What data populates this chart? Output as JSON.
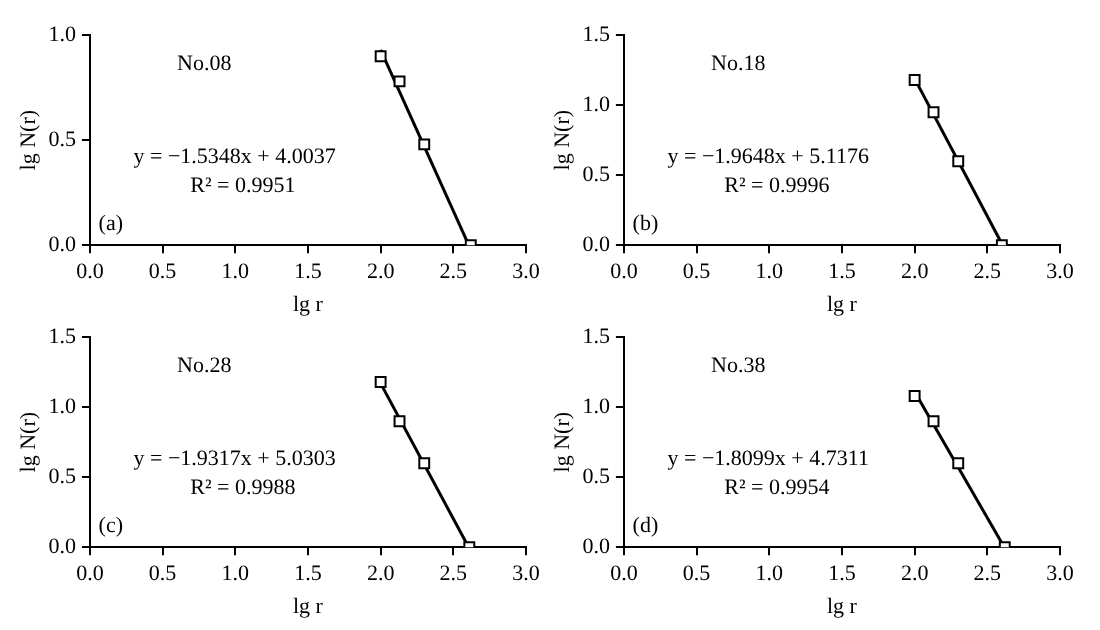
{
  "chart_data": [
    {
      "type": "scatter",
      "xlabel": "lg r",
      "ylabel": "lg N(r)",
      "annotations": [
        "No.08",
        "y = −1.5348x + 4.0037",
        "R² = 0.9951",
        "(a)"
      ],
      "xlim": [
        0,
        3
      ],
      "ylim": [
        0,
        1
      ],
      "xticks": [
        {
          "value": 0,
          "label": "0.0"
        },
        {
          "value": 0.5,
          "label": "0.5"
        },
        {
          "value": 1,
          "label": "1.0"
        },
        {
          "value": 1.5,
          "label": "1.5"
        },
        {
          "value": 2,
          "label": "2.0"
        },
        {
          "value": 2.5,
          "label": "2.5"
        },
        {
          "value": 3,
          "label": "3.0"
        }
      ],
      "yticks": [
        {
          "value": 0,
          "label": "0.0"
        },
        {
          "value": 0.5,
          "label": "0.5"
        },
        {
          "value": 1,
          "label": "1.0"
        }
      ],
      "grid": false,
      "legend": false,
      "series": [
        {
          "marker": "square",
          "color": "#000000",
          "x": [
            2.0,
            2.13,
            2.3,
            2.62
          ],
          "values": [
            0.9,
            0.78,
            0.48,
            0.0
          ]
        },
        {
          "type": "line",
          "marker": "none",
          "color": "#000000",
          "x": [
            2.0,
            2.6
          ],
          "values": [
            0.93,
            0.01
          ]
        }
      ]
    },
    {
      "type": "scatter",
      "xlabel": "lg r",
      "ylabel": "lg N(r)",
      "annotations": [
        "No.18",
        "y = −1.9648x + 5.1176",
        "R² = 0.9996",
        "(b)"
      ],
      "xlim": [
        0,
        3
      ],
      "ylim": [
        0,
        1.5
      ],
      "xticks": [
        {
          "value": 0,
          "label": "0.0"
        },
        {
          "value": 0.5,
          "label": "0.5"
        },
        {
          "value": 1,
          "label": "1.0"
        },
        {
          "value": 1.5,
          "label": "1.5"
        },
        {
          "value": 2,
          "label": "2.0"
        },
        {
          "value": 2.5,
          "label": "2.5"
        },
        {
          "value": 3,
          "label": "3.0"
        }
      ],
      "yticks": [
        {
          "value": 0,
          "label": "0.0"
        },
        {
          "value": 0.5,
          "label": "0.5"
        },
        {
          "value": 1,
          "label": "1.0"
        },
        {
          "value": 1.5,
          "label": "1.5"
        }
      ],
      "grid": false,
      "legend": false,
      "series": [
        {
          "marker": "square",
          "color": "#000000",
          "x": [
            2.0,
            2.13,
            2.3,
            2.6
          ],
          "values": [
            1.18,
            0.95,
            0.6,
            0.0
          ]
        },
        {
          "type": "line",
          "marker": "none",
          "color": "#000000",
          "x": [
            2.0,
            2.6
          ],
          "values": [
            1.19,
            0.01
          ]
        }
      ]
    },
    {
      "type": "scatter",
      "xlabel": "lg r",
      "ylabel": "lg N(r)",
      "annotations": [
        "No.28",
        "y = −1.9317x + 5.0303",
        "R² = 0.9988",
        "(c)"
      ],
      "xlim": [
        0,
        3
      ],
      "ylim": [
        0,
        1.5
      ],
      "xticks": [
        {
          "value": 0,
          "label": "0.0"
        },
        {
          "value": 0.5,
          "label": "0.5"
        },
        {
          "value": 1,
          "label": "1.0"
        },
        {
          "value": 1.5,
          "label": "1.5"
        },
        {
          "value": 2,
          "label": "2.0"
        },
        {
          "value": 2.5,
          "label": "2.5"
        },
        {
          "value": 3,
          "label": "3.0"
        }
      ],
      "yticks": [
        {
          "value": 0,
          "label": "0.0"
        },
        {
          "value": 0.5,
          "label": "0.5"
        },
        {
          "value": 1,
          "label": "1.0"
        },
        {
          "value": 1.5,
          "label": "1.5"
        }
      ],
      "grid": false,
      "legend": false,
      "series": [
        {
          "marker": "square",
          "color": "#000000",
          "x": [
            2.0,
            2.13,
            2.3,
            2.61
          ],
          "values": [
            1.18,
            0.9,
            0.6,
            0.0
          ]
        },
        {
          "type": "line",
          "marker": "none",
          "color": "#000000",
          "x": [
            2.0,
            2.6
          ],
          "values": [
            1.17,
            0.01
          ]
        }
      ]
    },
    {
      "type": "scatter",
      "xlabel": "lg r",
      "ylabel": "lg N(r)",
      "annotations": [
        "No.38",
        "y = −1.8099x + 4.7311",
        "R² = 0.9954",
        "(d)"
      ],
      "xlim": [
        0,
        3
      ],
      "ylim": [
        0,
        1.5
      ],
      "xticks": [
        {
          "value": 0,
          "label": "0.0"
        },
        {
          "value": 0.5,
          "label": "0.5"
        },
        {
          "value": 1,
          "label": "1.0"
        },
        {
          "value": 1.5,
          "label": "1.5"
        },
        {
          "value": 2,
          "label": "2.0"
        },
        {
          "value": 2.5,
          "label": "2.5"
        },
        {
          "value": 3,
          "label": "3.0"
        }
      ],
      "yticks": [
        {
          "value": 0,
          "label": "0.0"
        },
        {
          "value": 0.5,
          "label": "0.5"
        },
        {
          "value": 1,
          "label": "1.0"
        },
        {
          "value": 1.5,
          "label": "1.5"
        }
      ],
      "grid": false,
      "legend": false,
      "series": [
        {
          "marker": "square",
          "color": "#000000",
          "x": [
            2.0,
            2.13,
            2.3,
            2.62
          ],
          "values": [
            1.08,
            0.9,
            0.6,
            0.0
          ]
        },
        {
          "type": "line",
          "marker": "none",
          "color": "#000000",
          "x": [
            2.0,
            2.6
          ],
          "values": [
            1.11,
            0.03
          ]
        }
      ]
    }
  ]
}
